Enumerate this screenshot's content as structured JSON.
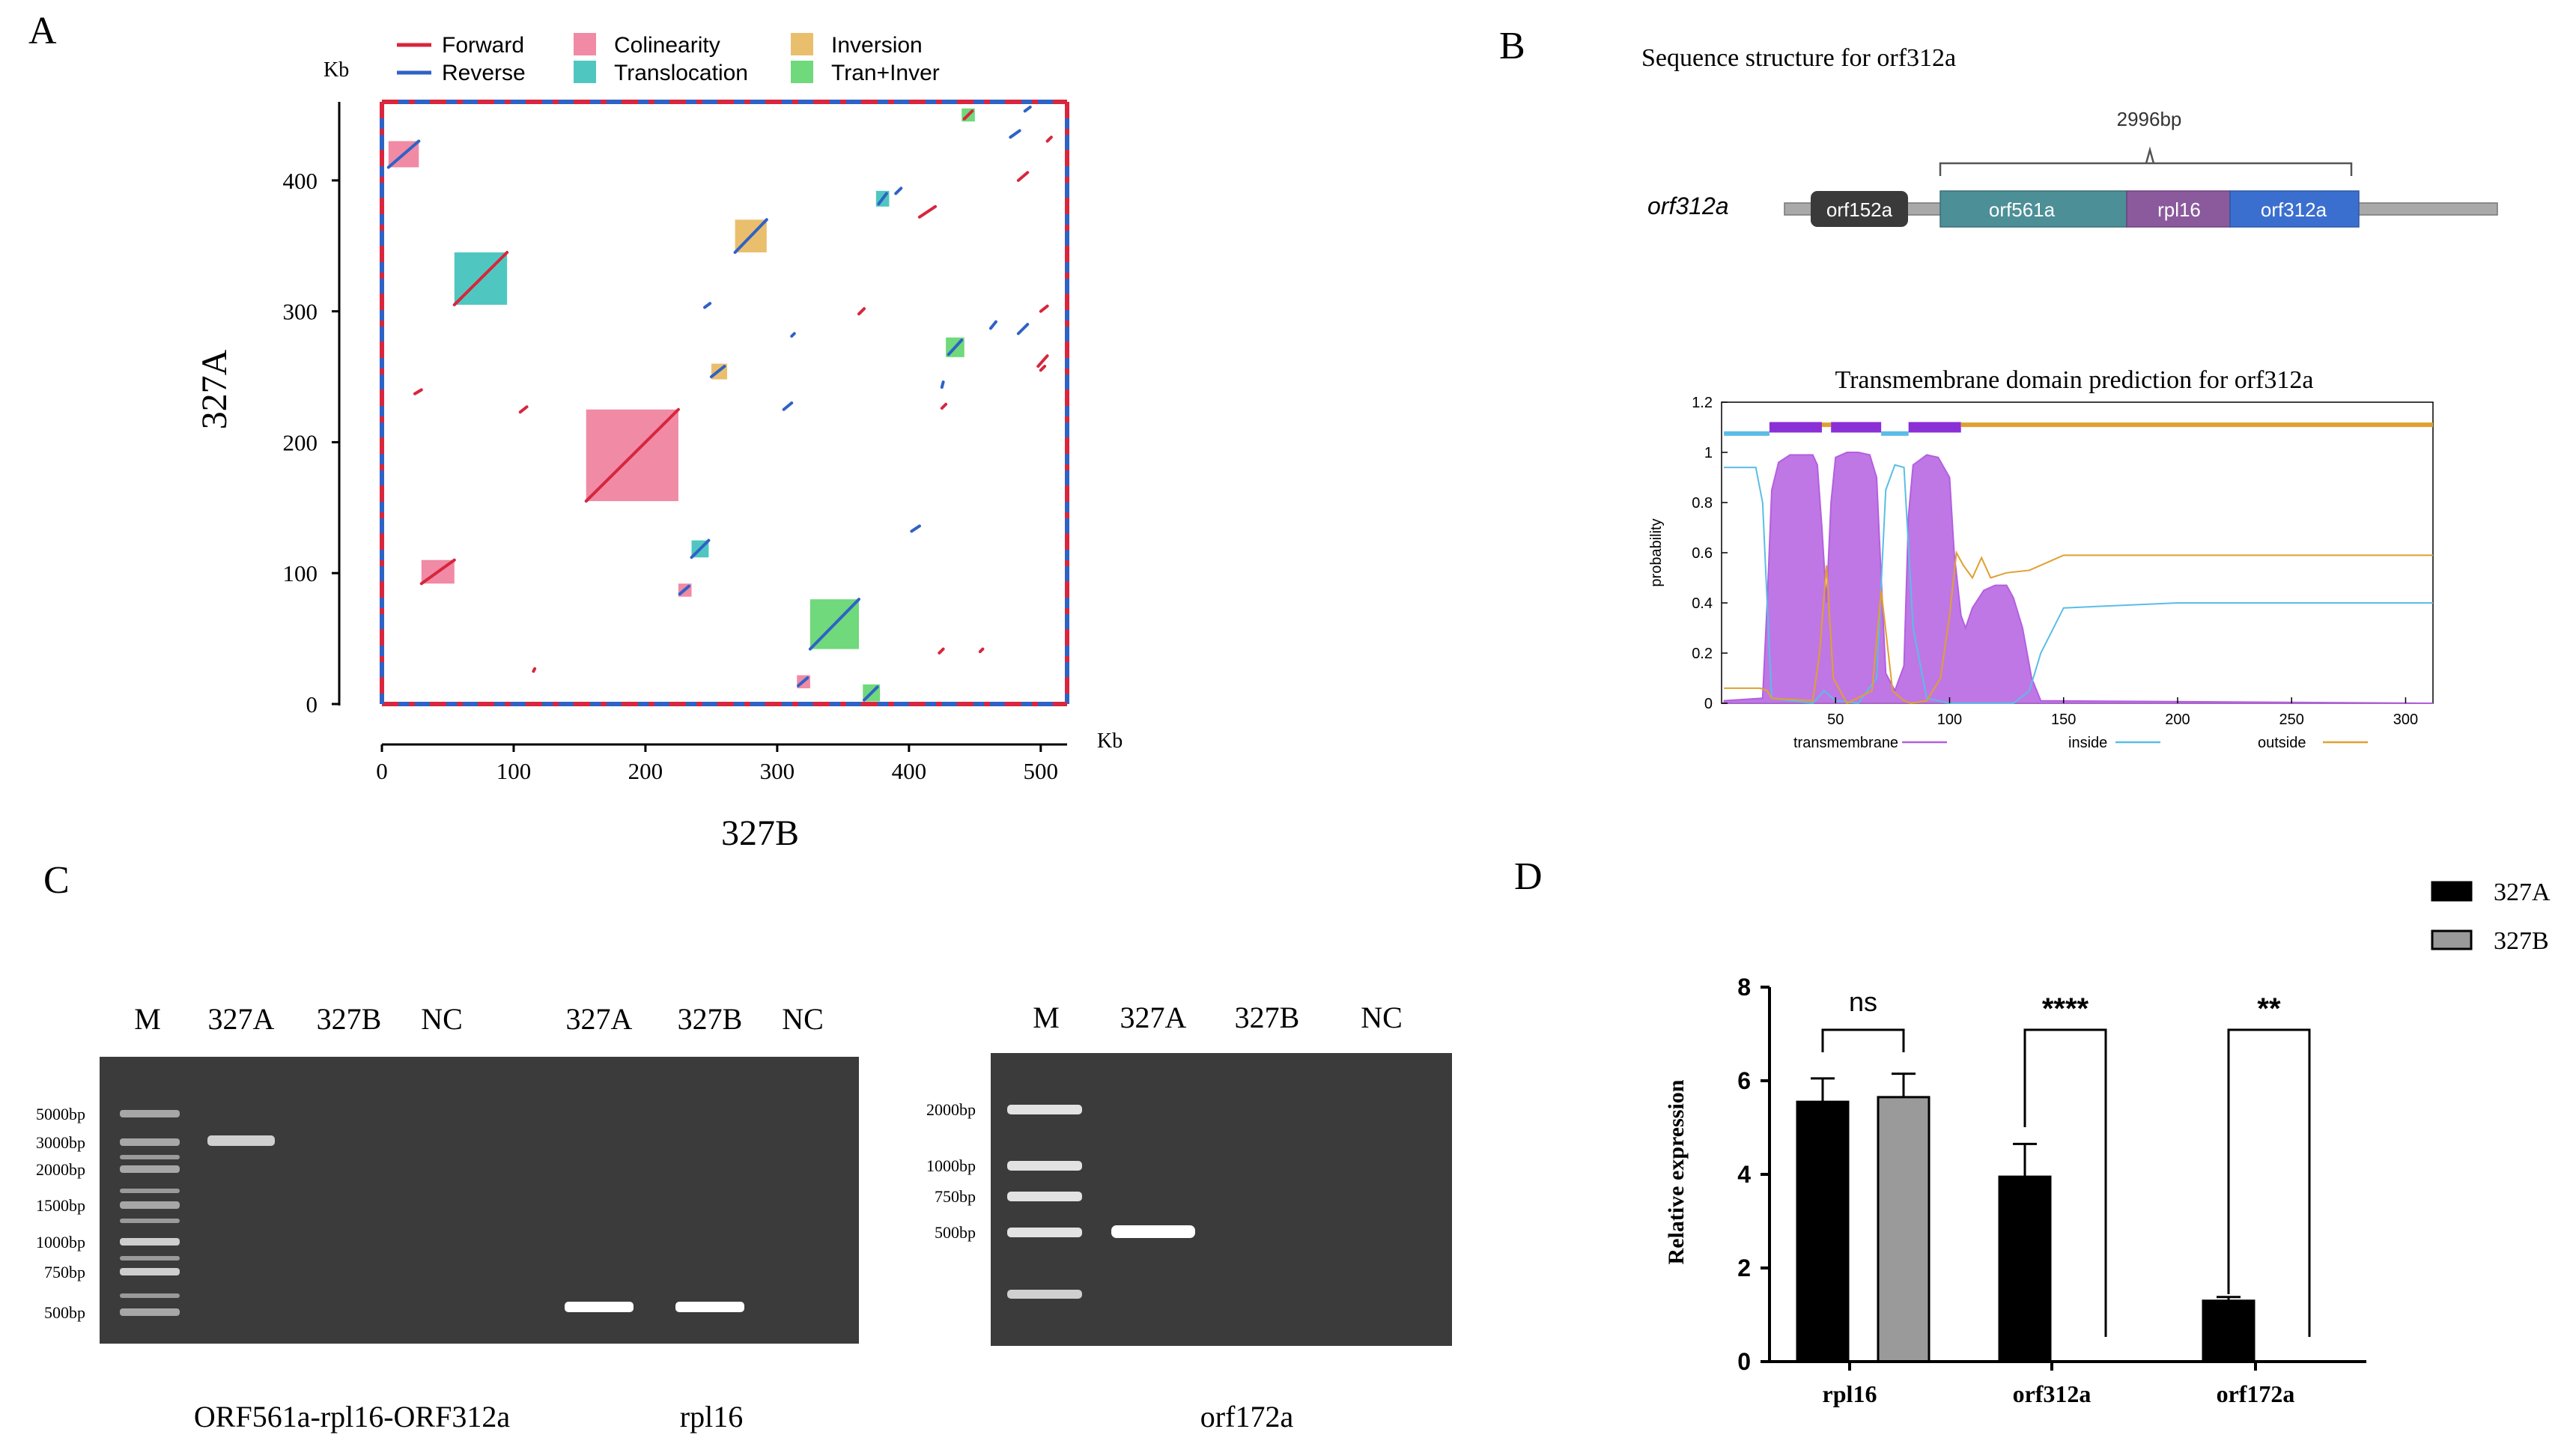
{
  "colors": {
    "forward": "#d7263d",
    "reverse": "#2f62c6",
    "colinearity": "#f08aa5",
    "translocation": "#4fc7c0",
    "inversion": "#e9bf6e",
    "tran_inver": "#6fd97b",
    "transmembrane": "#b45fe0",
    "inside": "#5bbde6",
    "outside": "#e0a030"
  },
  "panels": {
    "a": "A",
    "b": "B",
    "c": "C",
    "d": "D"
  },
  "chart_data": [
    {
      "panel": "A",
      "type": "scatter",
      "title": "",
      "xlabel": "327B",
      "ylabel": "327A",
      "x_unit": "Kb",
      "y_unit": "Kb",
      "xlim": [
        0,
        520
      ],
      "ylim": [
        0,
        460
      ],
      "xticks": [
        0,
        100,
        200,
        300,
        400,
        500
      ],
      "yticks": [
        0,
        100,
        200,
        300,
        400
      ],
      "legend": [
        {
          "key": "forward",
          "label": "Forward",
          "kind": "line"
        },
        {
          "key": "reverse",
          "label": "Reverse",
          "kind": "line"
        },
        {
          "key": "colinearity",
          "label": "Colinearity",
          "kind": "box"
        },
        {
          "key": "translocation",
          "label": "Translocation",
          "kind": "box"
        },
        {
          "key": "inversion",
          "label": "Inversion",
          "kind": "box"
        },
        {
          "key": "tran_inver",
          "label": "Tran+Inver",
          "kind": "box"
        }
      ],
      "blocks": [
        {
          "kind": "colinearity",
          "x0": 155,
          "x1": 225,
          "y0": 155,
          "y1": 225
        },
        {
          "kind": "colinearity",
          "x0": 5,
          "x1": 28,
          "y0": 410,
          "y1": 430
        },
        {
          "kind": "colinearity",
          "x0": 30,
          "x1": 55,
          "y0": 92,
          "y1": 110
        },
        {
          "kind": "translocation",
          "x0": 55,
          "x1": 95,
          "y0": 305,
          "y1": 345
        },
        {
          "kind": "translocation",
          "x0": 235,
          "x1": 248,
          "y0": 112,
          "y1": 125
        },
        {
          "kind": "inversion",
          "x0": 268,
          "x1": 292,
          "y0": 345,
          "y1": 370
        },
        {
          "kind": "inversion",
          "x0": 250,
          "x1": 262,
          "y0": 248,
          "y1": 260
        },
        {
          "kind": "tran_inver",
          "x0": 325,
          "x1": 362,
          "y0": 42,
          "y1": 80
        },
        {
          "kind": "tran_inver",
          "x0": 428,
          "x1": 442,
          "y0": 265,
          "y1": 280
        },
        {
          "kind": "tran_inver",
          "x0": 365,
          "x1": 378,
          "y0": 2,
          "y1": 15
        },
        {
          "kind": "colinearity",
          "x0": 225,
          "x1": 235,
          "y0": 82,
          "y1": 92
        },
        {
          "kind": "colinearity",
          "x0": 315,
          "x1": 325,
          "y0": 12,
          "y1": 22
        },
        {
          "kind": "tran_inver",
          "x0": 440,
          "x1": 450,
          "y0": 445,
          "y1": 455
        },
        {
          "kind": "translocation",
          "x0": 375,
          "x1": 385,
          "y0": 380,
          "y1": 392
        }
      ],
      "segments": [
        {
          "kind": "forward",
          "x0": 155,
          "y0": 155,
          "x1": 225,
          "y1": 225
        },
        {
          "kind": "reverse",
          "x0": 5,
          "y0": 410,
          "x1": 28,
          "y1": 430
        },
        {
          "kind": "forward",
          "x0": 30,
          "y0": 92,
          "x1": 55,
          "y1": 110
        },
        {
          "kind": "forward",
          "x0": 55,
          "y0": 305,
          "x1": 95,
          "y1": 345
        },
        {
          "kind": "reverse",
          "x0": 235,
          "y0": 112,
          "x1": 248,
          "y1": 125
        },
        {
          "kind": "reverse",
          "x0": 268,
          "y0": 345,
          "x1": 292,
          "y1": 370
        },
        {
          "kind": "reverse",
          "x0": 250,
          "y0": 250,
          "x1": 260,
          "y1": 258
        },
        {
          "kind": "reverse",
          "x0": 325,
          "y0": 42,
          "x1": 362,
          "y1": 80
        },
        {
          "kind": "reverse",
          "x0": 430,
          "y0": 267,
          "x1": 440,
          "y1": 278
        },
        {
          "kind": "reverse",
          "x0": 366,
          "y0": 3,
          "x1": 376,
          "y1": 13
        },
        {
          "kind": "reverse",
          "x0": 226,
          "y0": 84,
          "x1": 233,
          "y1": 90
        },
        {
          "kind": "reverse",
          "x0": 316,
          "y0": 14,
          "x1": 323,
          "y1": 20
        },
        {
          "kind": "forward",
          "x0": 442,
          "y0": 447,
          "x1": 448,
          "y1": 453
        },
        {
          "kind": "reverse",
          "x0": 377,
          "y0": 382,
          "x1": 383,
          "y1": 390
        },
        {
          "kind": "forward",
          "x0": 408,
          "y0": 372,
          "x1": 420,
          "y1": 380
        },
        {
          "kind": "forward",
          "x0": 483,
          "y0": 400,
          "x1": 490,
          "y1": 406
        },
        {
          "kind": "reverse",
          "x0": 477,
          "y0": 433,
          "x1": 484,
          "y1": 438
        },
        {
          "kind": "forward",
          "x0": 498,
          "y0": 258,
          "x1": 505,
          "y1": 266
        },
        {
          "kind": "reverse",
          "x0": 483,
          "y0": 283,
          "x1": 490,
          "y1": 290
        },
        {
          "kind": "reverse",
          "x0": 462,
          "y0": 287,
          "x1": 466,
          "y1": 292
        },
        {
          "kind": "forward",
          "x0": 500,
          "y0": 300,
          "x1": 505,
          "y1": 304
        },
        {
          "kind": "reverse",
          "x0": 305,
          "y0": 225,
          "x1": 311,
          "y1": 230
        },
        {
          "kind": "reverse",
          "x0": 402,
          "y0": 132,
          "x1": 408,
          "y1": 136
        },
        {
          "kind": "forward",
          "x0": 362,
          "y0": 298,
          "x1": 366,
          "y1": 302
        },
        {
          "kind": "reverse",
          "x0": 245,
          "y0": 303,
          "x1": 249,
          "y1": 306
        },
        {
          "kind": "reverse",
          "x0": 311,
          "y0": 281,
          "x1": 313,
          "y1": 283
        },
        {
          "kind": "forward",
          "x0": 25,
          "y0": 237,
          "x1": 30,
          "y1": 240
        },
        {
          "kind": "forward",
          "x0": 105,
          "y0": 223,
          "x1": 110,
          "y1": 227
        },
        {
          "kind": "forward",
          "x0": 425,
          "y0": 226,
          "x1": 428,
          "y1": 229
        },
        {
          "kind": "reverse",
          "x0": 425,
          "y0": 242,
          "x1": 426,
          "y1": 246
        },
        {
          "kind": "forward",
          "x0": 423,
          "y0": 39,
          "x1": 426,
          "y1": 42
        },
        {
          "kind": "forward",
          "x0": 454,
          "y0": 40,
          "x1": 456,
          "y1": 42
        },
        {
          "kind": "reverse",
          "x0": 488,
          "y0": 453,
          "x1": 492,
          "y1": 456
        },
        {
          "kind": "forward",
          "x0": 505,
          "y0": 430,
          "x1": 508,
          "y1": 433
        },
        {
          "kind": "forward",
          "x0": 500,
          "y0": 255,
          "x1": 503,
          "y1": 258
        },
        {
          "kind": "reverse",
          "x0": 390,
          "y0": 390,
          "x1": 394,
          "y1": 394
        },
        {
          "kind": "forward",
          "x0": 115,
          "y0": 25,
          "x1": 116,
          "y1": 27
        }
      ]
    },
    {
      "panel": "B",
      "type": "line",
      "title": "Transmembrane domain prediction for orf312a",
      "xlabel": "",
      "ylabel": "probability",
      "xlim": [
        0,
        312
      ],
      "ylim": [
        0,
        1.2
      ],
      "xticks": [
        50,
        100,
        150,
        200,
        250,
        300
      ],
      "yticks": [
        0,
        0.2,
        0.4,
        0.6,
        0.8,
        1,
        1.2
      ],
      "ytick_labels": [
        "0",
        "0.2",
        "0.4",
        "0.6",
        "0.8",
        "1",
        "1.2"
      ],
      "legend": [
        {
          "key": "transmembrane",
          "label": "transmembrane"
        },
        {
          "key": "inside",
          "label": "inside"
        },
        {
          "key": "outside",
          "label": "outside"
        }
      ],
      "topology": [
        {
          "kind": "inside",
          "from": 1,
          "to": 21
        },
        {
          "kind": "transmembrane",
          "from": 21,
          "to": 44
        },
        {
          "kind": "outside",
          "from": 44,
          "to": 48
        },
        {
          "kind": "transmembrane",
          "from": 48,
          "to": 70
        },
        {
          "kind": "inside",
          "from": 70,
          "to": 82
        },
        {
          "kind": "transmembrane",
          "from": 82,
          "to": 105
        },
        {
          "kind": "outside",
          "from": 105,
          "to": 312
        }
      ],
      "series": [
        {
          "name": "transmembrane",
          "x": [
            1,
            18,
            20,
            22,
            25,
            30,
            40,
            42,
            44,
            46,
            48,
            50,
            55,
            60,
            65,
            68,
            70,
            72,
            76,
            80,
            82,
            84,
            90,
            95,
            100,
            102,
            105,
            107,
            110,
            115,
            120,
            125,
            128,
            132,
            136,
            140,
            312
          ],
          "y": [
            0.01,
            0.02,
            0.4,
            0.85,
            0.96,
            0.99,
            0.99,
            0.95,
            0.7,
            0.4,
            0.8,
            0.98,
            1.0,
            1.0,
            0.99,
            0.9,
            0.5,
            0.12,
            0.05,
            0.15,
            0.75,
            0.95,
            0.99,
            0.98,
            0.9,
            0.6,
            0.35,
            0.3,
            0.38,
            0.45,
            0.47,
            0.47,
            0.42,
            0.3,
            0.1,
            0.01,
            0.0
          ]
        },
        {
          "name": "inside",
          "x": [
            1,
            15,
            18,
            20,
            22,
            40,
            45,
            50,
            60,
            68,
            72,
            76,
            80,
            84,
            90,
            100,
            108,
            115,
            122,
            128,
            135,
            140,
            150,
            200,
            312
          ],
          "y": [
            0.94,
            0.94,
            0.8,
            0.4,
            0.02,
            0.0,
            0.05,
            0.01,
            0.0,
            0.1,
            0.85,
            0.95,
            0.94,
            0.3,
            0.02,
            0.0,
            0.0,
            0.0,
            0.0,
            0.0,
            0.05,
            0.2,
            0.38,
            0.4,
            0.4
          ]
        },
        {
          "name": "outside",
          "x": [
            1,
            17,
            20,
            22,
            40,
            43,
            46,
            49,
            55,
            66,
            70,
            75,
            80,
            83,
            90,
            96,
            100,
            103,
            106,
            110,
            114,
            118,
            125,
            135,
            145,
            150,
            200,
            312
          ],
          "y": [
            0.06,
            0.06,
            0.05,
            0.02,
            0.01,
            0.2,
            0.55,
            0.1,
            0.0,
            0.05,
            0.45,
            0.05,
            0.01,
            0.0,
            0.01,
            0.1,
            0.35,
            0.6,
            0.55,
            0.5,
            0.58,
            0.5,
            0.52,
            0.53,
            0.57,
            0.59,
            0.59,
            0.59
          ]
        }
      ],
      "figure": {
        "title": "Sequence structure for orf312a",
        "gene_label": "orf312a",
        "span_label": "2996bp",
        "genes": [
          "orf152a",
          "orf561a",
          "rpl16",
          "orf312a"
        ]
      }
    },
    {
      "panel": "C",
      "type": "table",
      "gels": [
        {
          "lanes": [
            "M",
            "327A",
            "327B",
            "NC",
            "327A",
            "327B",
            "NC"
          ],
          "ladder": [
            "5000bp",
            "3000bp",
            "2000bp",
            "1500bp",
            "1000bp",
            "750bp",
            "500bp"
          ],
          "amplicons": [
            "ORF561a-rpl16-ORF312a",
            "rpl16"
          ],
          "bands": [
            {
              "lane": "327A",
              "lane_index": 1,
              "size_bp": 3000
            },
            {
              "lane": "327A",
              "lane_index": 4,
              "size_bp": 500
            },
            {
              "lane": "327B",
              "lane_index": 5,
              "size_bp": 500
            }
          ]
        },
        {
          "lanes": [
            "M",
            "327A",
            "327B",
            "NC"
          ],
          "ladder": [
            "2000bp",
            "1000bp",
            "750bp",
            "500bp"
          ],
          "amplicons": [
            "orf172a"
          ],
          "bands": [
            {
              "lane": "327A",
              "lane_index": 1,
              "size_bp": 500
            }
          ]
        }
      ]
    },
    {
      "panel": "D",
      "type": "bar",
      "title": "",
      "xlabel": "",
      "ylabel": "Relative expression",
      "ylim": [
        0,
        8
      ],
      "yticks": [
        0,
        2,
        4,
        6,
        8
      ],
      "categories": [
        "rpl16",
        "orf312a",
        "orf172a"
      ],
      "series": [
        {
          "name": "327A",
          "color": "#000000",
          "values": [
            5.55,
            3.95,
            1.3
          ],
          "errors": [
            0.5,
            0.7,
            0.08
          ]
        },
        {
          "name": "327B",
          "color": "#9a9a9a",
          "values": [
            5.65,
            0,
            0
          ],
          "errors": [
            0.5,
            0,
            0
          ]
        }
      ],
      "significance": [
        "ns",
        "****",
        "**"
      ],
      "legend_position": "top-right"
    }
  ]
}
